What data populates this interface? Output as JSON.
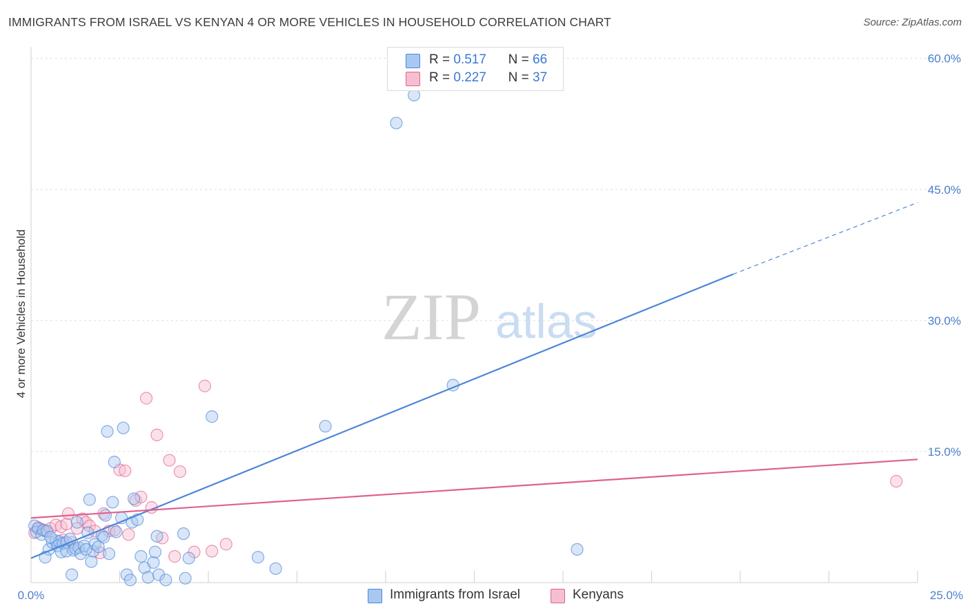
{
  "header": {
    "title": "IMMIGRANTS FROM ISRAEL VS KENYAN 4 OR MORE VEHICLES IN HOUSEHOLD CORRELATION CHART",
    "source": "Source: ZipAtlas.com"
  },
  "watermark": {
    "zip": "ZIP",
    "atlas": "atlas"
  },
  "legend": {
    "rows": [
      {
        "r_label": "R =",
        "r_value": "0.517",
        "n_label": "N =",
        "n_value": "66",
        "color": "#a9c8f0"
      },
      {
        "r_label": "R =",
        "r_value": "0.227",
        "n_label": "N =",
        "n_value": "37",
        "color": "#f6bfd0"
      }
    ]
  },
  "bottom_legend": [
    {
      "label": "Immigrants from Israel",
      "color": "#a9c8f0"
    },
    {
      "label": "Kenyans",
      "color": "#f6bfd0"
    }
  ],
  "chart_data": {
    "type": "scatter",
    "title": "IMMIGRANTS FROM ISRAEL VS KENYAN 4 OR MORE VEHICLES IN HOUSEHOLD CORRELATION CHART",
    "xlabel": "",
    "ylabel": "4 or more Vehicles in Household",
    "xlim": [
      0,
      25
    ],
    "ylim": [
      0,
      61
    ],
    "x_tick_labels": [
      "0.0%",
      "25.0%"
    ],
    "y_ticks": [
      15,
      30,
      45,
      60
    ],
    "y_tick_labels": [
      "15.0%",
      "30.0%",
      "45.0%",
      "60.0%"
    ],
    "grid": true,
    "series": [
      {
        "name": "Immigrants from Israel",
        "color": "#4a86d8",
        "fill": "#a9c8f0",
        "points": [
          [
            0.1,
            6.5
          ],
          [
            0.15,
            5.8
          ],
          [
            0.2,
            6.2
          ],
          [
            0.3,
            5.5
          ],
          [
            0.35,
            6.0
          ],
          [
            0.45,
            5.9
          ],
          [
            0.5,
            3.8
          ],
          [
            0.4,
            2.9
          ],
          [
            0.6,
            4.6
          ],
          [
            0.7,
            4.8
          ],
          [
            0.75,
            4.2
          ],
          [
            0.8,
            4.7
          ],
          [
            0.85,
            3.5
          ],
          [
            0.9,
            4.5
          ],
          [
            1.0,
            4.6
          ],
          [
            1.1,
            5.0
          ],
          [
            1.0,
            3.6
          ],
          [
            1.2,
            3.7
          ],
          [
            1.25,
            3.9
          ],
          [
            1.3,
            6.9
          ],
          [
            1.35,
            4.0
          ],
          [
            1.4,
            3.3
          ],
          [
            1.5,
            4.2
          ],
          [
            1.6,
            5.7
          ],
          [
            1.65,
            9.5
          ],
          [
            1.7,
            2.4
          ],
          [
            1.75,
            3.6
          ],
          [
            1.8,
            4.4
          ],
          [
            1.9,
            4.1
          ],
          [
            2.0,
            5.4
          ],
          [
            2.1,
            7.7
          ],
          [
            2.15,
            17.3
          ],
          [
            2.2,
            3.3
          ],
          [
            2.3,
            9.2
          ],
          [
            2.35,
            13.8
          ],
          [
            2.4,
            5.8
          ],
          [
            2.55,
            7.4
          ],
          [
            2.6,
            17.7
          ],
          [
            2.7,
            0.9
          ],
          [
            2.8,
            0.3
          ],
          [
            2.85,
            6.9
          ],
          [
            2.9,
            9.6
          ],
          [
            3.0,
            7.2
          ],
          [
            3.1,
            3.0
          ],
          [
            3.2,
            1.7
          ],
          [
            3.3,
            0.6
          ],
          [
            3.45,
            2.3
          ],
          [
            3.5,
            3.5
          ],
          [
            3.55,
            5.3
          ],
          [
            3.6,
            0.9
          ],
          [
            3.8,
            0.3
          ],
          [
            4.3,
            5.6
          ],
          [
            4.35,
            0.5
          ],
          [
            4.45,
            2.8
          ],
          [
            5.1,
            19.0
          ],
          [
            6.4,
            2.9
          ],
          [
            6.9,
            1.6
          ],
          [
            8.3,
            17.9
          ],
          [
            10.3,
            52.6
          ],
          [
            10.8,
            55.8
          ],
          [
            11.9,
            22.6
          ],
          [
            15.4,
            3.8
          ],
          [
            1.15,
            0.9
          ],
          [
            2.05,
            5.2
          ],
          [
            1.55,
            3.8
          ],
          [
            0.55,
            5.2
          ]
        ],
        "trend": {
          "x0": 0,
          "y0": 2.8,
          "x1_solid": 19.8,
          "y1_solid": 35.3,
          "x1_dash": 25,
          "y1_dash": 43.5
        }
      },
      {
        "name": "Kenyans",
        "color": "#e0608f",
        "fill": "#f6bfd0",
        "points": [
          [
            0.1,
            5.7
          ],
          [
            0.2,
            6.3
          ],
          [
            0.3,
            6.1
          ],
          [
            0.4,
            5.9
          ],
          [
            0.55,
            6.2
          ],
          [
            0.7,
            6.6
          ],
          [
            0.85,
            6.4
          ],
          [
            1.0,
            6.7
          ],
          [
            1.05,
            7.9
          ],
          [
            1.15,
            4.6
          ],
          [
            1.3,
            6.2
          ],
          [
            1.45,
            7.3
          ],
          [
            1.55,
            6.9
          ],
          [
            1.65,
            6.5
          ],
          [
            1.8,
            5.9
          ],
          [
            1.95,
            3.4
          ],
          [
            2.05,
            7.9
          ],
          [
            2.2,
            5.9
          ],
          [
            2.35,
            6.0
          ],
          [
            2.5,
            12.9
          ],
          [
            2.65,
            12.8
          ],
          [
            2.75,
            5.5
          ],
          [
            2.95,
            9.4
          ],
          [
            3.1,
            9.8
          ],
          [
            3.25,
            21.1
          ],
          [
            3.4,
            8.6
          ],
          [
            3.55,
            16.9
          ],
          [
            3.7,
            5.1
          ],
          [
            3.9,
            14.0
          ],
          [
            4.05,
            3.0
          ],
          [
            4.2,
            12.7
          ],
          [
            4.6,
            3.5
          ],
          [
            4.9,
            22.5
          ],
          [
            5.1,
            3.6
          ],
          [
            5.5,
            4.4
          ],
          [
            24.4,
            11.6
          ],
          [
            0.9,
            4.9
          ]
        ],
        "trend": {
          "x0": 0,
          "y0": 7.4,
          "x1_solid": 25,
          "y1_solid": 14.1
        }
      }
    ]
  }
}
